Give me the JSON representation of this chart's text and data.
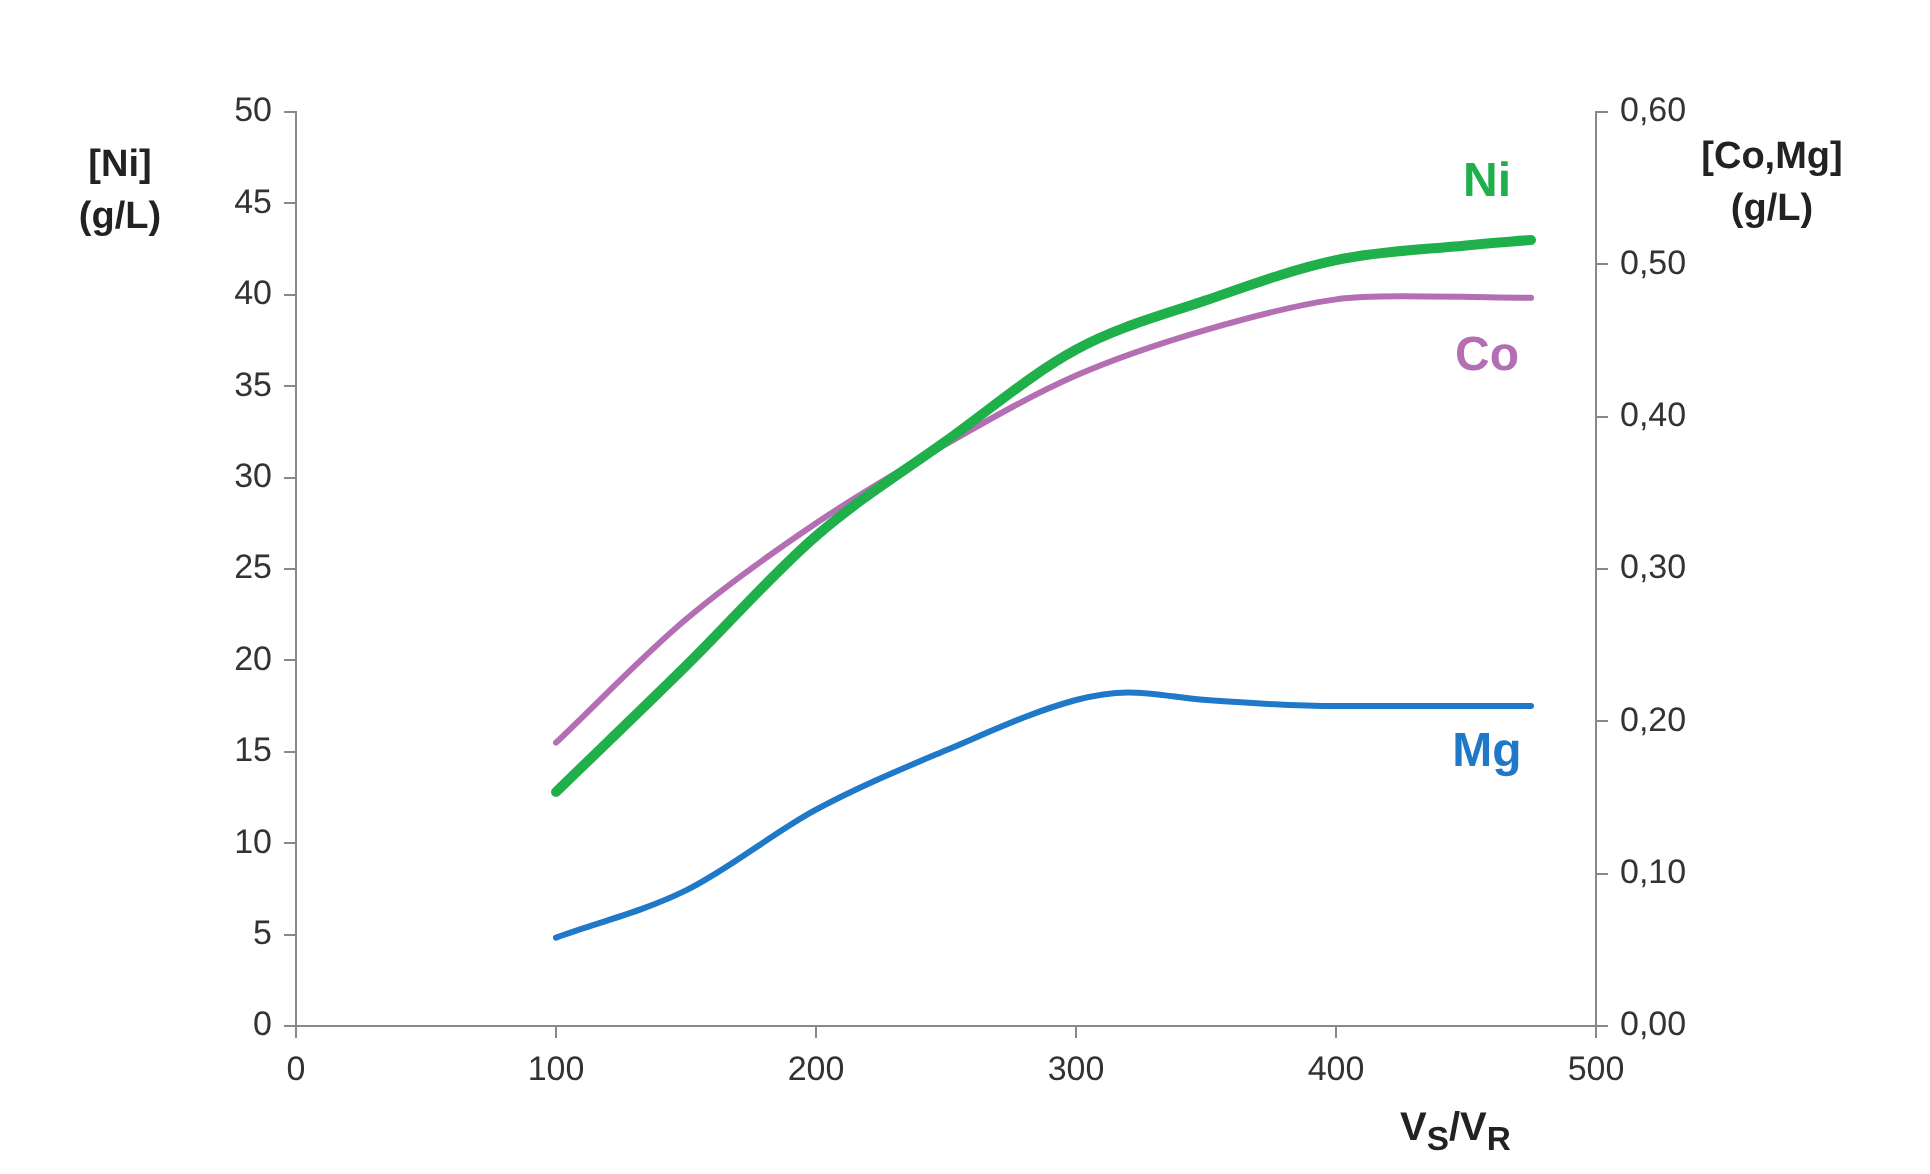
{
  "chart_data": {
    "type": "line",
    "xlabel": "V$_{S}$/V$_{R}$",
    "ylabel": "[Ni]\n(g/L)",
    "y2label": "[Co,Mg]\n(g/L)",
    "xlim": [
      0,
      500
    ],
    "xticks": [
      0,
      100,
      200,
      300,
      400,
      500
    ],
    "ylim": [
      0,
      50
    ],
    "yticks": [
      0,
      5,
      10,
      15,
      20,
      25,
      30,
      35,
      40,
      45,
      50
    ],
    "y2lim": [
      0,
      0.6
    ],
    "y2ticks": [
      {
        "value": 0,
        "label": "0,00"
      },
      {
        "value": 0.1,
        "label": "0,10"
      },
      {
        "value": 0.2,
        "label": "0,20"
      },
      {
        "value": 0.3,
        "label": "0,30"
      },
      {
        "value": 0.4,
        "label": "0,40"
      },
      {
        "value": 0.5,
        "label": "0,50"
      },
      {
        "value": 0.6,
        "label": "0,60"
      }
    ],
    "grid": false,
    "legend": false,
    "marker": "none",
    "line_style": "solid",
    "series": [
      {
        "name": "Ni",
        "color": "#20b04b",
        "x": [
          100,
          150,
          200,
          250,
          300,
          350,
          400,
          450,
          475
        ],
        "values": [
          12.8,
          19.7,
          26.8,
          32,
          37,
          39.7,
          41.9,
          42.7,
          43
        ]
      },
      {
        "name": "Co",
        "color": "#b46fb4",
        "axis": "y2",
        "x": [
          100,
          150,
          200,
          250,
          300,
          350,
          400,
          425,
          475
        ],
        "values": [
          0.186,
          0.267,
          0.33,
          0.382,
          0.427,
          0.457,
          0.477,
          0.479,
          0.478
        ]
      },
      {
        "name": "Mg",
        "color": "#1f78c8",
        "axis": "y2",
        "x": [
          100,
          150,
          200,
          250,
          300,
          320,
          350,
          400,
          475
        ],
        "values": [
          0.058,
          0.089,
          0.142,
          0.181,
          0.214,
          0.219,
          0.214,
          0.21,
          0.21
        ]
      }
    ]
  }
}
